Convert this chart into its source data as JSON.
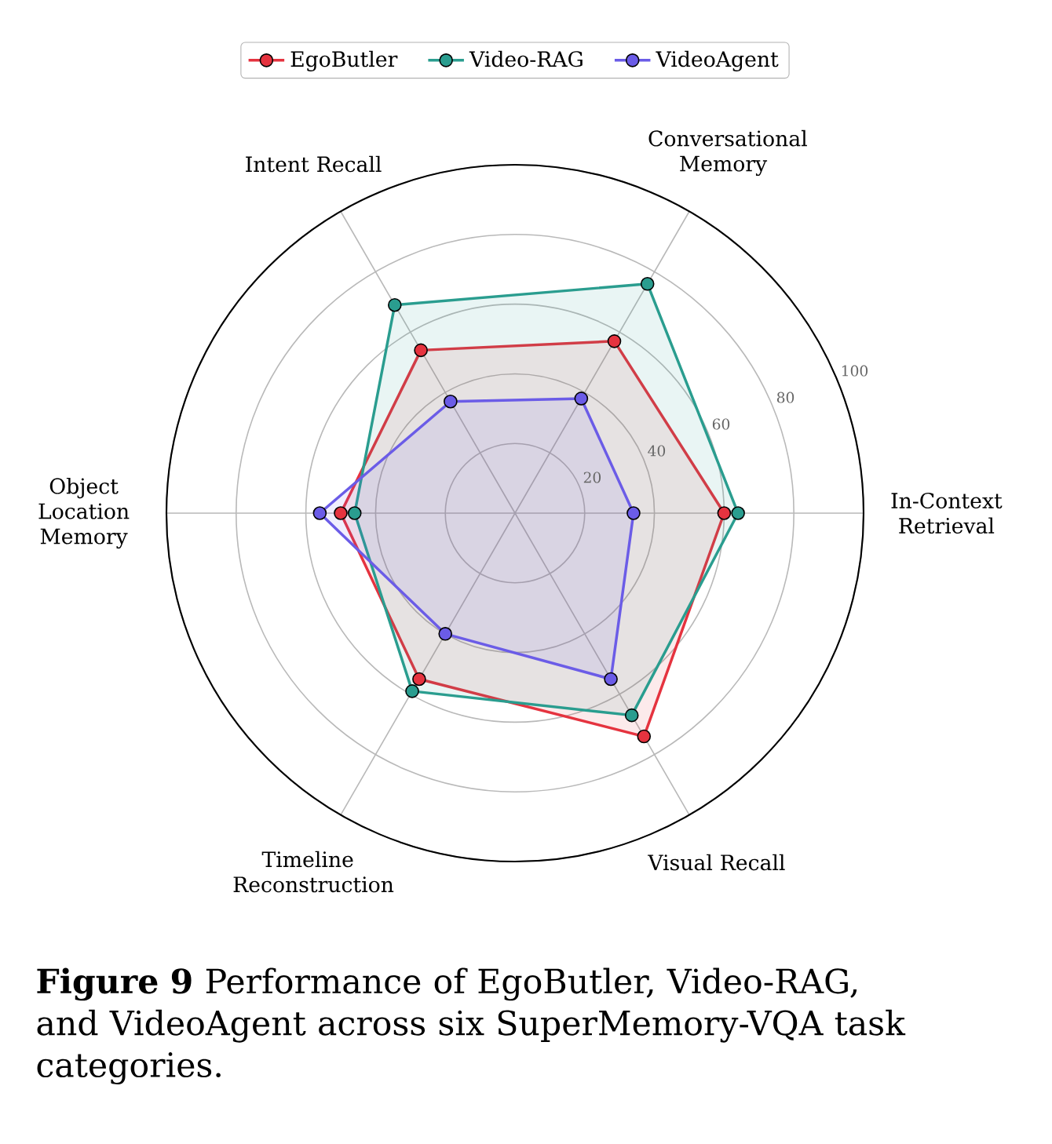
{
  "chart_data": {
    "type": "radar",
    "categories": [
      "Conversational Memory",
      "In-Context Retrieval",
      "Visual Recall",
      "Timeline Reconstruction",
      "Object Location Memory",
      "Intent Recall"
    ],
    "series": [
      {
        "name": "EgoButler",
        "color": "#e5333f",
        "values": [
          57,
          60,
          74,
          55,
          50,
          54
        ]
      },
      {
        "name": "Video-RAG",
        "color": "#2a9d8f",
        "values": [
          76,
          64,
          67,
          59,
          46,
          69
        ]
      },
      {
        "name": "VideoAgent",
        "color": "#6b5ce7",
        "values": [
          38,
          34,
          55,
          40,
          56,
          37
        ]
      }
    ],
    "ylim": [
      0,
      100
    ],
    "yticks": [
      20,
      40,
      60,
      80,
      100
    ],
    "grid": true,
    "legend": "top",
    "marker": "circle",
    "annotations": [
      "**Figure 9**   Performance of EgoButler, Video-RAG, and VideoAgent across six SuperMemory-VQA task categories."
    ]
  }
}
